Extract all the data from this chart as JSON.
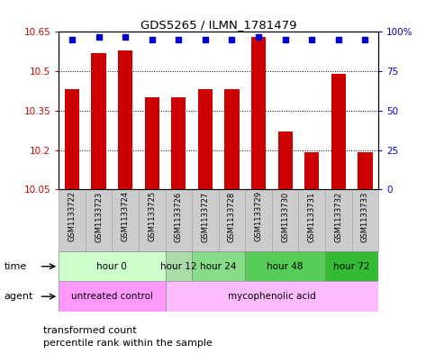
{
  "title": "GDS5265 / ILMN_1781479",
  "samples": [
    "GSM1133722",
    "GSM1133723",
    "GSM1133724",
    "GSM1133725",
    "GSM1133726",
    "GSM1133727",
    "GSM1133728",
    "GSM1133729",
    "GSM1133730",
    "GSM1133731",
    "GSM1133732",
    "GSM1133733"
  ],
  "transformed_counts": [
    10.43,
    10.57,
    10.58,
    10.4,
    10.4,
    10.43,
    10.43,
    10.63,
    10.27,
    10.19,
    10.49,
    10.19
  ],
  "percentile_ranks": [
    95,
    97,
    97,
    95,
    95,
    95,
    95,
    97,
    95,
    95,
    95,
    95
  ],
  "ymin": 10.05,
  "ymax": 10.65,
  "yticks": [
    10.05,
    10.2,
    10.35,
    10.5,
    10.65
  ],
  "ytick_labels": [
    "10.05",
    "10.2",
    "10.35",
    "10.5",
    "10.65"
  ],
  "right_yticks": [
    0,
    25,
    50,
    75,
    100
  ],
  "right_ytick_labels": [
    "0",
    "25",
    "50",
    "75",
    "100%"
  ],
  "bar_color": "#cc0000",
  "dot_color": "#0000cc",
  "bar_width": 0.55,
  "time_groups": [
    {
      "label": "hour 0",
      "start": 0,
      "end": 3,
      "color": "#ccffcc"
    },
    {
      "label": "hour 12",
      "start": 4,
      "end": 4,
      "color": "#aaddaa"
    },
    {
      "label": "hour 24",
      "start": 5,
      "end": 6,
      "color": "#88dd88"
    },
    {
      "label": "hour 48",
      "start": 7,
      "end": 9,
      "color": "#55cc55"
    },
    {
      "label": "hour 72",
      "start": 10,
      "end": 11,
      "color": "#33bb33"
    }
  ],
  "agent_groups": [
    {
      "label": "untreated control",
      "start": 0,
      "end": 3,
      "color": "#ff99ff"
    },
    {
      "label": "mycophenolic acid",
      "start": 4,
      "end": 11,
      "color": "#ffbbff"
    }
  ],
  "legend_items": [
    {
      "label": "transformed count",
      "color": "#cc0000"
    },
    {
      "label": "percentile rank within the sample",
      "color": "#0000cc"
    }
  ],
  "left_axis_color": "#cc0000",
  "right_axis_color": "#0000cc",
  "grid_color": "black",
  "sample_bg": "#cccccc",
  "sample_border": "#aaaaaa"
}
